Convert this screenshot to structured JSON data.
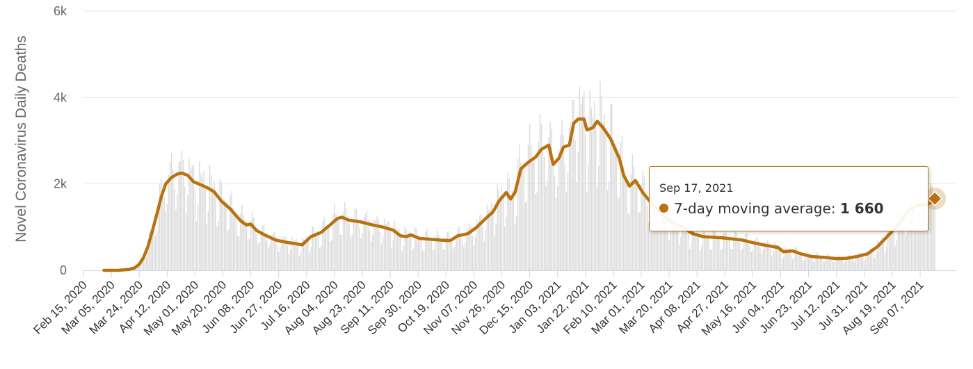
{
  "colors": {
    "line": "#b8720f",
    "bars": "#dcdcdc",
    "grid": "#e6e6e6",
    "axis_text": "#666666",
    "tooltip_border": "#b8720f"
  },
  "chart_data": {
    "type": "bar+line",
    "ylabel": "Novel Coronavirus Daily Deaths",
    "ylim": [
      0,
      6000
    ],
    "y_ticks": [
      {
        "value": 0,
        "label": "0"
      },
      {
        "value": 2000,
        "label": "2k"
      },
      {
        "value": 4000,
        "label": "4k"
      },
      {
        "value": 6000,
        "label": "6k"
      }
    ],
    "x_tick_labels": [
      "Feb 15, 2020",
      "Mar 05, 2020",
      "Mar 24, 2020",
      "Apr 12, 2020",
      "May 01, 2020",
      "May 20, 2020",
      "Jun 08, 2020",
      "Jun 27, 2020",
      "Jul 16, 2020",
      "Aug 04, 2020",
      "Aug 23, 2020",
      "Sep 11, 2020",
      "Sep 30, 2020",
      "Oct 19, 2020",
      "Nov 07, 2020",
      "Nov 26, 2020",
      "Dec 15, 2020",
      "Jan 03, 2021",
      "Jan 22, 2021",
      "Feb 10, 2021",
      "Mar 01, 2021",
      "Mar 20, 2021",
      "Apr 08, 2021",
      "Apr 27, 2021",
      "May 16, 2021",
      "Jun 04, 2021",
      "Jun 23, 2021",
      "Jul 12, 2021",
      "Jul 31, 2021",
      "Aug 19, 2021",
      "Sep 07, 2021"
    ],
    "x_start": "Feb 15, 2020",
    "x_end": "Sep 17, 2021",
    "grid": true,
    "series": [
      {
        "name": "7-day moving average",
        "points": [
          [
            "Feb 29, 2020",
            0
          ],
          [
            "Mar 10, 2020",
            2
          ],
          [
            "Mar 17, 2020",
            20
          ],
          [
            "Mar 21, 2020",
            60
          ],
          [
            "Mar 24, 2020",
            140
          ],
          [
            "Mar 27, 2020",
            300
          ],
          [
            "Mar 30, 2020",
            560
          ],
          [
            "Apr 02, 2020",
            920
          ],
          [
            "Apr 05, 2020",
            1300
          ],
          [
            "Apr 08, 2020",
            1700
          ],
          [
            "Apr 11, 2020",
            2000
          ],
          [
            "Apr 15, 2020",
            2150
          ],
          [
            "Apr 19, 2020",
            2230
          ],
          [
            "Apr 22, 2020",
            2250
          ],
          [
            "Apr 26, 2020",
            2200
          ],
          [
            "Apr 30, 2020",
            2050
          ],
          [
            "May 05, 2020",
            1980
          ],
          [
            "May 10, 2020",
            1900
          ],
          [
            "May 14, 2020",
            1820
          ],
          [
            "May 19, 2020",
            1600
          ],
          [
            "May 25, 2020",
            1420
          ],
          [
            "Jun 01, 2020",
            1150
          ],
          [
            "Jun 05, 2020",
            1050
          ],
          [
            "Jun 08, 2020",
            1070
          ],
          [
            "Jun 12, 2020",
            920
          ],
          [
            "Jun 18, 2020",
            810
          ],
          [
            "Jun 25, 2020",
            700
          ],
          [
            "Jul 02, 2020",
            650
          ],
          [
            "Jul 08, 2020",
            620
          ],
          [
            "Jul 13, 2020",
            590
          ],
          [
            "Jul 19, 2020",
            780
          ],
          [
            "Jul 26, 2020",
            880
          ],
          [
            "Aug 01, 2020",
            1050
          ],
          [
            "Aug 06, 2020",
            1200
          ],
          [
            "Aug 09, 2020",
            1230
          ],
          [
            "Aug 14, 2020",
            1160
          ],
          [
            "Aug 22, 2020",
            1120
          ],
          [
            "Aug 30, 2020",
            1050
          ],
          [
            "Sep 06, 2020",
            1000
          ],
          [
            "Sep 13, 2020",
            930
          ],
          [
            "Sep 18, 2020",
            800
          ],
          [
            "Sep 22, 2020",
            780
          ],
          [
            "Sep 25, 2020",
            820
          ],
          [
            "Oct 01, 2020",
            740
          ],
          [
            "Oct 08, 2020",
            720
          ],
          [
            "Oct 15, 2020",
            700
          ],
          [
            "Oct 22, 2020",
            690
          ],
          [
            "Oct 27, 2020",
            800
          ],
          [
            "Nov 03, 2020",
            850
          ],
          [
            "Nov 09, 2020",
            1000
          ],
          [
            "Nov 15, 2020",
            1200
          ],
          [
            "Nov 20, 2020",
            1350
          ],
          [
            "Nov 24, 2020",
            1600
          ],
          [
            "Nov 29, 2020",
            1800
          ],
          [
            "Dec 02, 2020",
            1650
          ],
          [
            "Dec 05, 2020",
            1800
          ],
          [
            "Dec 09, 2020",
            2350
          ],
          [
            "Dec 14, 2020",
            2500
          ],
          [
            "Dec 19, 2020",
            2620
          ],
          [
            "Dec 23, 2020",
            2800
          ],
          [
            "Dec 28, 2020",
            2900
          ],
          [
            "Dec 31, 2020",
            2450
          ],
          [
            "Jan 04, 2021",
            2600
          ],
          [
            "Jan 07, 2021",
            2850
          ],
          [
            "Jan 11, 2021",
            2900
          ],
          [
            "Jan 14, 2021",
            3400
          ],
          [
            "Jan 17, 2021",
            3500
          ],
          [
            "Jan 21, 2021",
            3500
          ],
          [
            "Jan 23, 2021",
            3250
          ],
          [
            "Jan 27, 2021",
            3300
          ],
          [
            "Jan 30, 2021",
            3450
          ],
          [
            "Feb 03, 2021",
            3300
          ],
          [
            "Feb 08, 2021",
            3050
          ],
          [
            "Feb 14, 2021",
            2600
          ],
          [
            "Feb 17, 2021",
            2200
          ],
          [
            "Feb 21, 2021",
            1950
          ],
          [
            "Feb 25, 2021",
            2080
          ],
          [
            "Mar 02, 2021",
            1800
          ],
          [
            "Mar 08, 2021",
            1550
          ],
          [
            "Mar 15, 2021",
            1300
          ],
          [
            "Mar 22, 2021",
            1100
          ],
          [
            "Mar 29, 2021",
            1000
          ],
          [
            "Apr 05, 2021",
            850
          ],
          [
            "Apr 12, 2021",
            780
          ],
          [
            "Apr 26, 2021",
            750
          ],
          [
            "May 09, 2021",
            700
          ],
          [
            "May 16, 2021",
            640
          ],
          [
            "May 23, 2021",
            590
          ],
          [
            "Jun 02, 2021",
            530
          ],
          [
            "Jun 06, 2021",
            430
          ],
          [
            "Jun 12, 2021",
            450
          ],
          [
            "Jun 18, 2021",
            380
          ],
          [
            "Jun 25, 2021",
            320
          ],
          [
            "Jul 04, 2021",
            300
          ],
          [
            "Jul 12, 2021",
            270
          ],
          [
            "Jul 19, 2021",
            280
          ],
          [
            "Jul 26, 2021",
            320
          ],
          [
            "Aug 02, 2021",
            380
          ],
          [
            "Aug 09, 2021",
            550
          ],
          [
            "Aug 16, 2021",
            800
          ],
          [
            "Aug 23, 2021",
            1050
          ],
          [
            "Aug 30, 2021",
            1400
          ],
          [
            "Sep 05, 2021",
            1500
          ],
          [
            "Sep 10, 2021",
            1520
          ],
          [
            "Sep 14, 2021",
            1560
          ],
          [
            "Sep 17, 2021",
            1660
          ]
        ]
      }
    ],
    "bars_series": {
      "name": "Daily Deaths",
      "note_values": "daily bars fluctuate around the moving average with weekly reporting dips"
    },
    "tooltip": {
      "date": "Sep 17, 2021",
      "label": "7-day moving average:",
      "value": "1 660"
    }
  }
}
